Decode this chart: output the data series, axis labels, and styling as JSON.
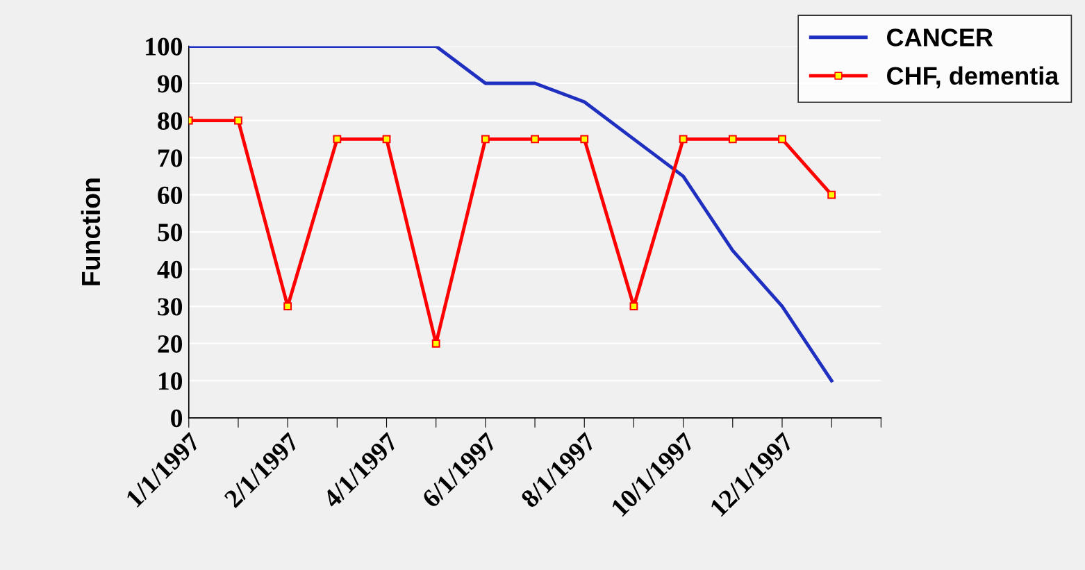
{
  "chart_data": {
    "type": "line",
    "ylabel": "Function",
    "categories": [
      "1/1/1997",
      null,
      "2/1/1997",
      null,
      "4/1/1997",
      null,
      "6/1/1997",
      null,
      "8/1/1997",
      null,
      "10/1/1997",
      null,
      "12/1/1997",
      null,
      null
    ],
    "series": [
      {
        "name": "CANCER",
        "color": "#1f2fbf",
        "marker": "none",
        "values": [
          100,
          100,
          100,
          100,
          100,
          100,
          90,
          90,
          85,
          75,
          65,
          45,
          30,
          10,
          null
        ]
      },
      {
        "name": "CHF, dementia",
        "color": "#ff0000",
        "marker": "square",
        "values": [
          80,
          80,
          30,
          75,
          75,
          20,
          75,
          75,
          75,
          30,
          75,
          75,
          75,
          60,
          null
        ]
      }
    ],
    "ylim": [
      0,
      100
    ],
    "yticks": [
      0,
      10,
      20,
      30,
      40,
      50,
      60,
      70,
      80,
      90,
      100
    ],
    "grid": "y",
    "legend": "top right",
    "line_style": "solid"
  }
}
